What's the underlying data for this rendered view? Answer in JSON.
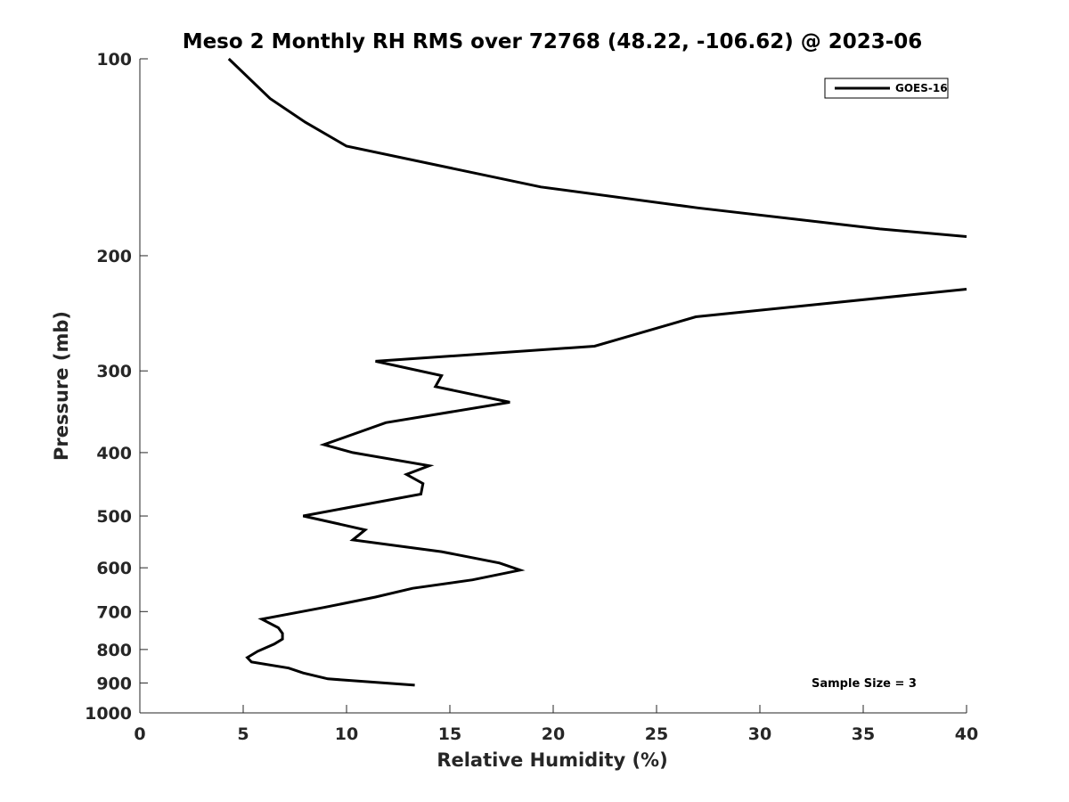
{
  "chart_data": {
    "type": "line",
    "title": "Meso 2 Monthly RH RMS over 72768 (48.22, -106.62) @ 2023-06",
    "xlabel": "Relative Humidity (%)",
    "ylabel": "Pressure (mb)",
    "xlim": [
      0,
      40
    ],
    "ylim": [
      100,
      1000
    ],
    "y_scale": "log",
    "y_reversed": true,
    "x_ticks": [
      "0",
      "5",
      "10",
      "15",
      "20",
      "25",
      "30",
      "35",
      "40"
    ],
    "y_ticks": [
      "100",
      "200",
      "300",
      "400",
      "500",
      "600",
      "700",
      "800",
      "900",
      "1000"
    ],
    "grid": false,
    "legend_position": "top-right",
    "annotation": "Sample Size = 3",
    "series": [
      {
        "name": "GOES-16",
        "color": "#000000",
        "x": [
          4.3,
          6.3,
          8.0,
          10.0,
          19.4,
          27.0,
          35.8,
          40.0,
          null,
          40.0,
          26.9,
          22.0,
          11.4,
          14.6,
          14.3,
          17.9,
          11.9,
          8.9,
          10.3,
          14.0,
          12.9,
          13.7,
          13.6,
          7.9,
          10.9,
          10.3,
          14.6,
          17.4,
          18.4,
          16.1,
          13.2,
          11.4,
          8.9,
          5.9,
          6.7,
          6.9,
          6.9,
          6.5,
          5.7,
          5.2,
          5.4,
          7.2,
          7.9,
          9.1,
          13.3
        ],
        "y": [
          100,
          115,
          125,
          136,
          157,
          169,
          182,
          187,
          null,
          225,
          248,
          275,
          290,
          305,
          317,
          335,
          360,
          389,
          400,
          419,
          432,
          446,
          463,
          500,
          525,
          544,
          567,
          590,
          605,
          626,
          645,
          665,
          690,
          719,
          741,
          756,
          771,
          785,
          805,
          823,
          836,
          854,
          869,
          887,
          907
        ]
      }
    ]
  }
}
